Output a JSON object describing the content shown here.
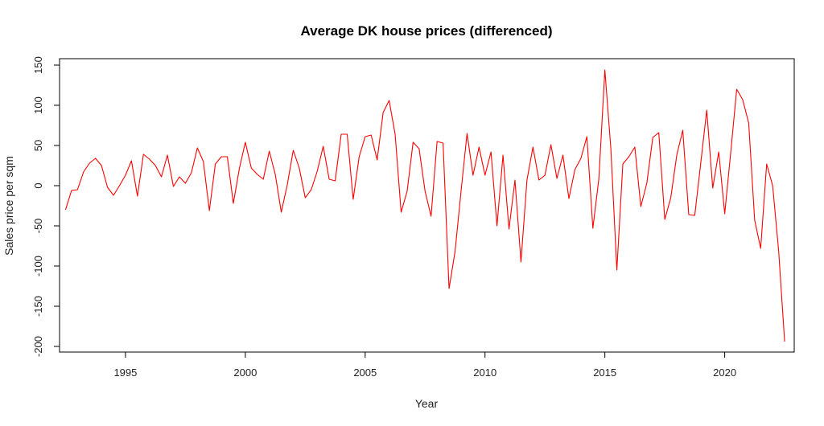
{
  "chart_data": {
    "type": "line",
    "title": "Average DK house prices (differenced)",
    "xlabel": "Year",
    "ylabel": "Sales price per sqm",
    "xlim": [
      1992.25,
      2022.9
    ],
    "ylim": [
      -207,
      158
    ],
    "x_ticks": [
      "1995",
      "2000",
      "2005",
      "2010",
      "2015",
      "2020"
    ],
    "y_ticks": [
      "150",
      "100",
      "50",
      "0",
      "-50",
      "-100",
      "-150",
      "-200"
    ],
    "grid": false,
    "legend": "none",
    "series_color": "#ff0000",
    "x_start": 1992.5,
    "x_step": 0.25,
    "values": [
      -30,
      -6,
      -5,
      17,
      28,
      34,
      25,
      -2,
      -12,
      0,
      13,
      31,
      -13,
      39,
      33,
      25,
      11,
      38,
      -1,
      11,
      3,
      16,
      47,
      30,
      -31,
      27,
      36,
      36,
      -22,
      21,
      54,
      22,
      14,
      8,
      43,
      14,
      -33,
      1,
      44,
      22,
      -15,
      -5,
      18,
      49,
      8,
      6,
      64,
      64,
      -17,
      36,
      61,
      63,
      32,
      91,
      106,
      64,
      -33,
      -7,
      54,
      46,
      -7,
      -38,
      55,
      53,
      -128,
      -82,
      -7,
      65,
      13,
      48,
      13,
      42,
      -50,
      38,
      -54,
      7,
      -95,
      7,
      48,
      7,
      13,
      51,
      9,
      38,
      -16,
      20,
      34,
      61,
      -53,
      9,
      144,
      46,
      -105,
      27,
      36,
      48,
      -26,
      3,
      60,
      66,
      -42,
      -15,
      38,
      69,
      -36,
      -37,
      28,
      94,
      -3,
      42,
      -35,
      41,
      120,
      107,
      78,
      -43,
      -78,
      27,
      0,
      -81,
      -194
    ]
  }
}
